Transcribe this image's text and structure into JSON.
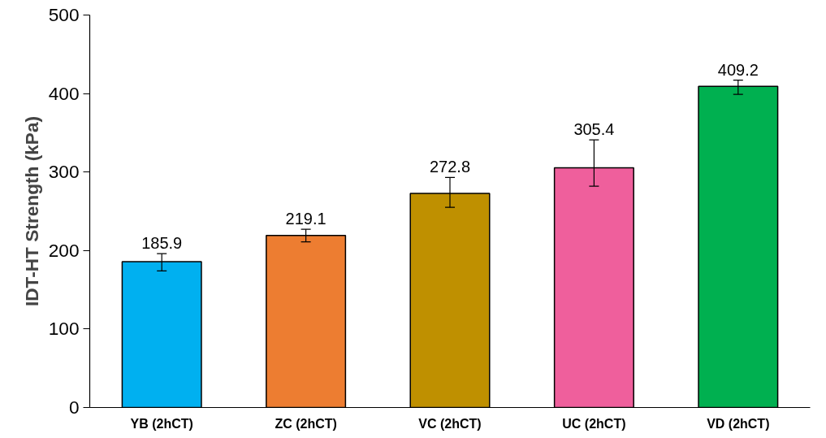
{
  "chart_data": {
    "type": "bar",
    "ylabel": "IDT-HT Strength (kPa)",
    "categories": [
      "YB (2hCT)",
      "ZC (2hCT)",
      "VC (2hCT)",
      "UC (2hCT)",
      "VD (2hCT)"
    ],
    "values": [
      185.9,
      219.1,
      272.8,
      305.4,
      409.2
    ],
    "colors": [
      "#00b0f0",
      "#ed7d31",
      "#bf9000",
      "#ef5f9c",
      "#00b050"
    ],
    "errors": [
      [
        174,
        196
      ],
      [
        211,
        227
      ],
      [
        255,
        293
      ],
      [
        282,
        341
      ],
      [
        399,
        417
      ]
    ],
    "data_labels": true,
    "ylim": [
      0,
      500
    ],
    "yticks": [
      0,
      100,
      200,
      300,
      400,
      500
    ],
    "grid": false
  }
}
